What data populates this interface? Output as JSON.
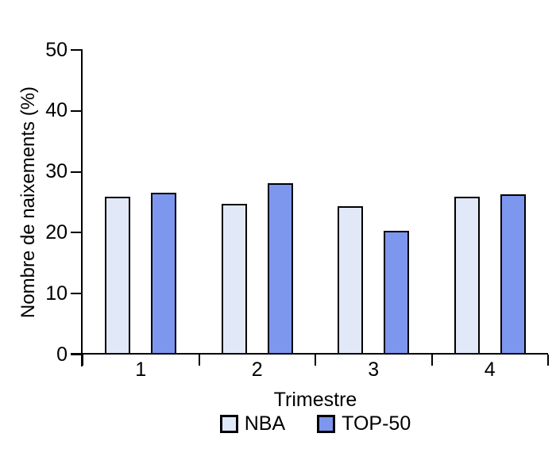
{
  "chart_data": {
    "type": "bar",
    "title": "",
    "categories": [
      "1",
      "2",
      "3",
      "4"
    ],
    "series": [
      {
        "name": "NBA",
        "color": "#e1e8f8",
        "values": [
          25.9,
          24.8,
          24.4,
          25.9
        ]
      },
      {
        "name": "TOP-50",
        "color": "#7d96ee",
        "values": [
          26.6,
          28.1,
          20.3,
          26.3
        ]
      }
    ],
    "xlabel": "Trimestre",
    "ylabel": "Nombre de naixements (%)",
    "ylim": [
      0,
      50
    ],
    "yticks": [
      0,
      10,
      20,
      30,
      40,
      50
    ],
    "legend_position": "bottom",
    "grid": false,
    "axis_color": "#000000",
    "background_color": "#ffffff"
  }
}
